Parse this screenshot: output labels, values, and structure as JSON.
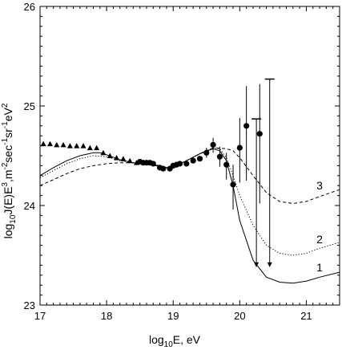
{
  "chart_data": {
    "type": "scatter",
    "xlim": [
      17,
      21.5
    ],
    "ylim": [
      23,
      26
    ],
    "xticks": [
      17,
      18,
      19,
      20,
      21
    ],
    "yticks": [
      23,
      24,
      25,
      26
    ],
    "xlabel": {
      "base": "log",
      "sub": "10",
      "rest": "E, eV"
    },
    "ylabel": {
      "base": "log",
      "sub": "10",
      "mid": "J(E)E",
      "sup1": "3",
      "mid2": ",m",
      "sup2": "-2",
      "mid3": "sec",
      "sup3": "-1",
      "mid4": "sr",
      "sup4": "-1",
      "mid5": "eV",
      "sup5": "2"
    },
    "triangles": {
      "x": [
        17.05,
        17.15,
        17.25,
        17.35,
        17.45,
        17.55,
        17.65,
        17.75,
        17.85,
        17.95,
        18.05,
        18.15,
        18.25,
        18.35,
        18.45
      ],
      "y": [
        24.62,
        24.62,
        24.61,
        24.61,
        24.6,
        24.6,
        24.6,
        24.58,
        24.58,
        24.53,
        24.5,
        24.48,
        24.47,
        24.45,
        24.43
      ]
    },
    "circles": {
      "x": [
        18.5,
        18.55,
        18.6,
        18.65,
        18.7,
        18.8,
        18.85,
        18.95,
        19.0,
        19.05,
        19.1,
        19.2,
        19.3,
        19.4,
        19.5,
        19.6,
        19.7,
        19.8,
        19.9,
        20.0,
        20.1,
        20.3
      ],
      "y": [
        24.44,
        24.43,
        24.43,
        24.43,
        24.42,
        24.38,
        24.37,
        24.37,
        24.4,
        24.41,
        24.42,
        24.42,
        24.45,
        24.47,
        24.53,
        24.61,
        24.49,
        24.41,
        24.21,
        24.58,
        24.8,
        24.72
      ],
      "err_lo": [
        0.02,
        0.02,
        0.02,
        0.02,
        0.02,
        0.02,
        0.02,
        0.02,
        0.02,
        0.02,
        0.02,
        0.02,
        0.02,
        0.02,
        0.05,
        0.08,
        0.1,
        0.15,
        0.25,
        0.35,
        0.55,
        0.7
      ],
      "err_hi": [
        0.02,
        0.02,
        0.02,
        0.02,
        0.02,
        0.02,
        0.02,
        0.02,
        0.02,
        0.02,
        0.02,
        0.02,
        0.02,
        0.02,
        0.05,
        0.07,
        0.1,
        0.12,
        0.2,
        0.3,
        0.4,
        0.5
      ]
    },
    "upper_limits": [
      {
        "x": 20.25,
        "y_top": 24.87,
        "y_bottom": 23.38
      },
      {
        "x": 20.45,
        "y_top": 25.27,
        "y_bottom": 23.38
      }
    ],
    "curves": [
      {
        "label": "1",
        "style": "solid",
        "label_x": 21.2,
        "label_y": 23.38,
        "x": [
          17,
          17.2,
          17.4,
          17.6,
          17.8,
          17.9,
          18.0,
          18.2,
          18.4,
          18.6,
          18.8,
          18.9,
          19.0,
          19.2,
          19.4,
          19.6,
          19.7,
          19.8,
          19.9,
          20.0,
          20.2,
          20.4,
          20.6,
          20.8,
          21.0,
          21.2,
          21.5
        ],
        "y": [
          24.3,
          24.38,
          24.45,
          24.5,
          24.53,
          24.53,
          24.51,
          24.46,
          24.43,
          24.42,
          24.4,
          24.38,
          24.39,
          24.45,
          24.52,
          24.57,
          24.55,
          24.45,
          24.2,
          23.85,
          23.45,
          23.28,
          23.23,
          23.22,
          23.24,
          23.28,
          23.33
        ]
      },
      {
        "label": "2",
        "style": "dotted",
        "label_x": 21.2,
        "label_y": 23.66,
        "x": [
          17,
          17.2,
          17.4,
          17.6,
          17.8,
          18.0,
          18.2,
          18.4,
          18.6,
          18.8,
          18.9,
          19.0,
          19.2,
          19.4,
          19.6,
          19.7,
          19.8,
          19.9,
          20.0,
          20.2,
          20.4,
          20.6,
          20.8,
          21.0,
          21.2,
          21.5
        ],
        "y": [
          24.28,
          24.35,
          24.42,
          24.47,
          24.5,
          24.49,
          24.45,
          24.43,
          24.42,
          24.39,
          24.38,
          24.39,
          24.45,
          24.52,
          24.58,
          24.57,
          24.48,
          24.3,
          24.1,
          23.8,
          23.6,
          23.52,
          23.5,
          23.52,
          23.57,
          23.63
        ]
      },
      {
        "label": "3",
        "style": "dashed",
        "label_x": 21.2,
        "label_y": 24.2,
        "x": [
          17,
          17.2,
          17.4,
          17.6,
          17.8,
          18.0,
          18.2,
          18.4,
          18.6,
          18.8,
          18.9,
          19.0,
          19.2,
          19.4,
          19.6,
          19.8,
          19.9,
          20.0,
          20.2,
          20.4,
          20.6,
          20.8,
          21.0,
          21.2,
          21.5
        ],
        "y": [
          24.2,
          24.26,
          24.32,
          24.37,
          24.4,
          24.42,
          24.43,
          24.43,
          24.42,
          24.39,
          24.38,
          24.39,
          24.45,
          24.52,
          24.58,
          24.57,
          24.55,
          24.48,
          24.3,
          24.13,
          24.04,
          24.02,
          24.04,
          24.09,
          24.16
        ]
      }
    ]
  }
}
